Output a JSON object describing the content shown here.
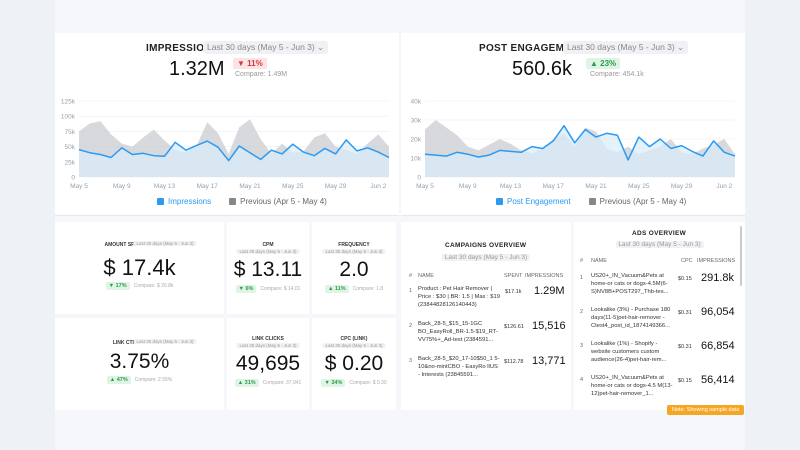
{
  "impressions": {
    "title": "IMPRESSIONS",
    "range": "Last 30 days (May 5 - Jun 3)",
    "value": "1.32M",
    "delta": "▼ 11%",
    "compare": "Compare: 1.49M",
    "legend_current": "Impressions",
    "legend_previous": "Previous (Apr 5 - May 4)",
    "colors": {
      "current": "#2b9af3",
      "previous": "#c9ccd2",
      "fill": "#d9ecfb"
    }
  },
  "engagement": {
    "title": "POST ENGAGEMENT",
    "range": "Last 30 days (May 5 - Jun 3)",
    "value": "560.6k",
    "delta": "▲ 23%",
    "compare": "Compare: 454.1k",
    "legend_current": "Post Engagement",
    "legend_previous": "Previous (Apr 5 - May 4)"
  },
  "chart_data": [
    {
      "type": "area",
      "title": "IMPRESSIONS",
      "x_ticks": [
        "May 5",
        "May 9",
        "May 13",
        "May 17",
        "May 21",
        "May 25",
        "May 29",
        "Jun 2"
      ],
      "y_ticks": [
        "0",
        "25k",
        "50k",
        "75k",
        "100k",
        "125k"
      ],
      "ylim": [
        0,
        125000
      ],
      "series": [
        {
          "name": "Impressions",
          "values": [
            45000,
            40000,
            37000,
            32000,
            48000,
            37000,
            39000,
            35000,
            34000,
            57000,
            44000,
            52000,
            59000,
            49000,
            27000,
            51000,
            40000,
            29000,
            44000,
            38000,
            54000,
            41000,
            35000,
            47000,
            38000,
            61000,
            43000,
            48000,
            41000,
            32000
          ]
        },
        {
          "name": "Previous (Apr 5 - May 4)",
          "values": [
            75000,
            88000,
            92000,
            70000,
            55000,
            50000,
            65000,
            78000,
            60000,
            45000,
            40000,
            52000,
            90000,
            72000,
            38000,
            82000,
            95000,
            62000,
            38000,
            55000,
            40000,
            42000,
            65000,
            72000,
            50000,
            45000,
            38000,
            55000,
            70000,
            50000
          ]
        }
      ]
    },
    {
      "type": "area",
      "title": "POST ENGAGEMENT",
      "x_ticks": [
        "May 5",
        "May 9",
        "May 13",
        "May 17",
        "May 21",
        "May 25",
        "May 29",
        "Jun 2"
      ],
      "y_ticks": [
        "0",
        "10k",
        "20k",
        "30k",
        "40k"
      ],
      "ylim": [
        0,
        40000
      ],
      "series": [
        {
          "name": "Post Engagement",
          "values": [
            12000,
            11500,
            11000,
            13000,
            12000,
            10500,
            11500,
            14000,
            13500,
            13000,
            16000,
            15000,
            19000,
            27000,
            18000,
            25000,
            21000,
            23000,
            22000,
            9000,
            21000,
            16000,
            20000,
            15000,
            16500,
            13500,
            11000,
            19000,
            13000,
            11000
          ]
        },
        {
          "name": "Previous (Apr 5 - May 4)",
          "values": [
            25000,
            30000,
            26000,
            22000,
            16000,
            14000,
            17000,
            20000,
            17500,
            14000,
            12500,
            15000,
            20000,
            23000,
            16000,
            26000,
            24000,
            15000,
            13000,
            16000,
            12000,
            14000,
            16000,
            20000,
            13000,
            12000,
            15000,
            17000,
            20000,
            12000
          ]
        }
      ]
    }
  ],
  "kpis": [
    {
      "label": "AMOUNT SPENT",
      "range": "Last 30 days (May 5 - Jun 3)",
      "value": "$ 17.4k",
      "delta": "▼ 17%",
      "compare": "Compare: $ 20.8k"
    },
    {
      "label": "CPM",
      "range": "Last 30 days (May 5 - Jun 3)",
      "value": "$ 13.11",
      "delta": "▼ 6%",
      "compare": "Compare: $ 14.01"
    },
    {
      "label": "FREQUENCY",
      "range": "Last 30 days (May 5 - Jun 3)",
      "value": "2.0",
      "delta": "▲ 11%",
      "compare": "Compare: 1.8"
    },
    {
      "label": "LINK CTR",
      "range": "Last 30 days (May 5 - Jun 3)",
      "value": "3.75%",
      "delta": "▲ 47%",
      "compare": "Compare: 2.55%"
    },
    {
      "label": "LINK CLICKS",
      "range": "Last 30 days (May 5 - Jun 3)",
      "value": "49,695",
      "delta": "▲ 31%",
      "compare": "Compare: 37,941"
    },
    {
      "label": "CPC (LINK)",
      "range": "Last 30 days (May 5 - Jun 3)",
      "value": "$ 0.20",
      "delta": "▼ 34%",
      "compare": "Compare: $ 0.30"
    }
  ],
  "campaigns": {
    "title": "CAMPAIGNS OVERVIEW",
    "range": "Last 30 days (May 5 - Jun 3)",
    "headers": {
      "num": "#",
      "name": "NAME",
      "spent": "SPENT",
      "impressions": "IMPRESSIONS"
    },
    "rows": [
      {
        "num": "1",
        "name": "Product : Pet Hair Remover | Price : $30 | BR: 1.5 | Max : $19 (23844828126140443)",
        "spent": "$17.1k",
        "impressions": "1.29M"
      },
      {
        "num": "2",
        "name": "Back_28-5_$15_15-1GC BO_EasyRoll_BR-1.5-$19_RT-VV75%+_Ad-test (2384591...",
        "spent": "$126.61",
        "impressions": "15,516"
      },
      {
        "num": "3",
        "name": "Back_28-5_$20_17-10$50_1 5-10&no-mintCBO - EasyRo llUS - Interests (23845591...",
        "spent": "$112.78",
        "impressions": "13,771"
      }
    ]
  },
  "ads": {
    "title": "ADS OVERVIEW",
    "range": "Last 30 days (May 5 - Jun 3)",
    "headers": {
      "num": "#",
      "name": "NAME",
      "cpc": "CPC",
      "impressions": "IMPRESSIONS"
    },
    "rows": [
      {
        "num": "1",
        "name": "US20+_IN_Vacuum&Pets at home-or cats or dogs-4.5M(6-S)NV8B+POST297_Thb-tes...",
        "cpc": "$0.15",
        "impressions": "291.8k"
      },
      {
        "num": "2",
        "name": "Lookalike (3%) - Purchase 180 days(11-5)pet-hair-remover - Ctest4_post_id_1874149366...",
        "cpc": "$0.31",
        "impressions": "96,054"
      },
      {
        "num": "3",
        "name": "Lookalike (1%) - Shopify - website customers custom audience(26-4)pet-hair-rem...",
        "cpc": "$0.31",
        "impressions": "66,854"
      },
      {
        "num": "4",
        "name": "US20+_IN_Vacuum&Pets at home-or cats or dogs-4.5 M(13-12)pet-hair-remover_1...",
        "cpc": "$0.15",
        "impressions": "56,414"
      }
    ],
    "sample_note": "Note: Showing sample data"
  }
}
